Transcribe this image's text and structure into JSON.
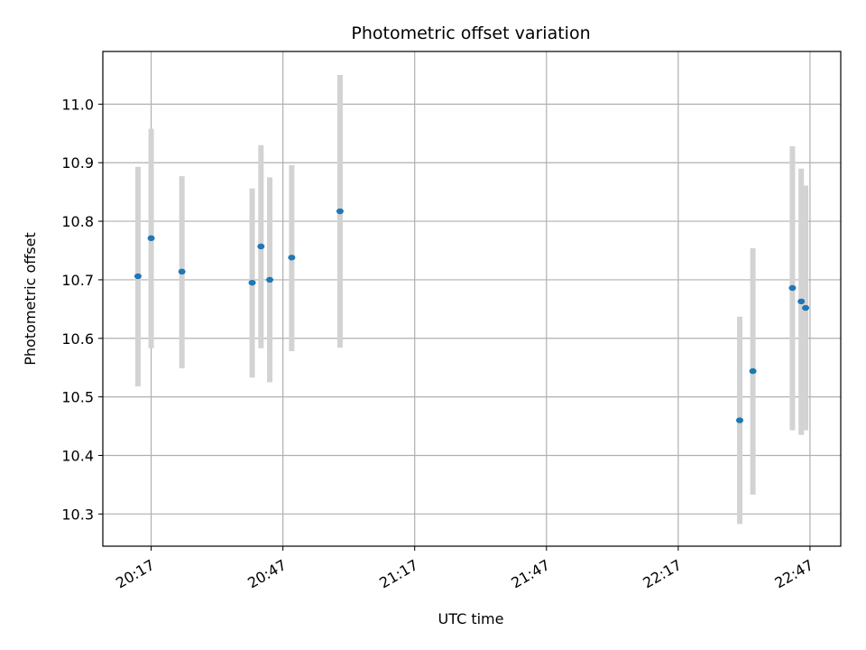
{
  "chart_data": {
    "type": "scatter",
    "title": "Photometric offset variation",
    "xlabel": "UTC time",
    "ylabel": "Photometric offset",
    "x_axis": {
      "kind": "time",
      "range": [
        "20:06",
        "22:54"
      ],
      "ticks": [
        "20:17",
        "20:47",
        "21:17",
        "21:47",
        "22:17",
        "22:47"
      ]
    },
    "y_axis": {
      "range": [
        10.245,
        11.09
      ],
      "ticks": [
        10.3,
        10.4,
        10.5,
        10.6,
        10.7,
        10.8,
        10.9,
        11.0
      ]
    },
    "grid": true,
    "colors": {
      "point": "#1f77b4",
      "error_bar": "#d3d3d3"
    },
    "series": [
      {
        "points": [
          {
            "x": "20:14",
            "y": 10.706,
            "y_low": 10.518,
            "y_high": 10.893
          },
          {
            "x": "20:17",
            "y": 10.771,
            "y_low": 10.583,
            "y_high": 10.958
          },
          {
            "x": "20:24",
            "y": 10.714,
            "y_low": 10.549,
            "y_high": 10.877
          },
          {
            "x": "20:40",
            "y": 10.695,
            "y_low": 10.533,
            "y_high": 10.856
          },
          {
            "x": "20:42",
            "y": 10.757,
            "y_low": 10.583,
            "y_high": 10.93
          },
          {
            "x": "20:44",
            "y": 10.7,
            "y_low": 10.525,
            "y_high": 10.875
          },
          {
            "x": "20:49",
            "y": 10.738,
            "y_low": 10.578,
            "y_high": 10.896
          },
          {
            "x": "21:00",
            "y": 10.817,
            "y_low": 10.584,
            "y_high": 11.05
          },
          {
            "x": "22:31",
            "y": 10.46,
            "y_low": 10.283,
            "y_high": 10.637
          },
          {
            "x": "22:34",
            "y": 10.544,
            "y_low": 10.333,
            "y_high": 10.754
          },
          {
            "x": "22:43",
            "y": 10.686,
            "y_low": 10.443,
            "y_high": 10.928
          },
          {
            "x": "22:45",
            "y": 10.663,
            "y_low": 10.435,
            "y_high": 10.89
          },
          {
            "x": "22:46",
            "y": 10.652,
            "y_low": 10.443,
            "y_high": 10.861
          }
        ]
      }
    ]
  }
}
